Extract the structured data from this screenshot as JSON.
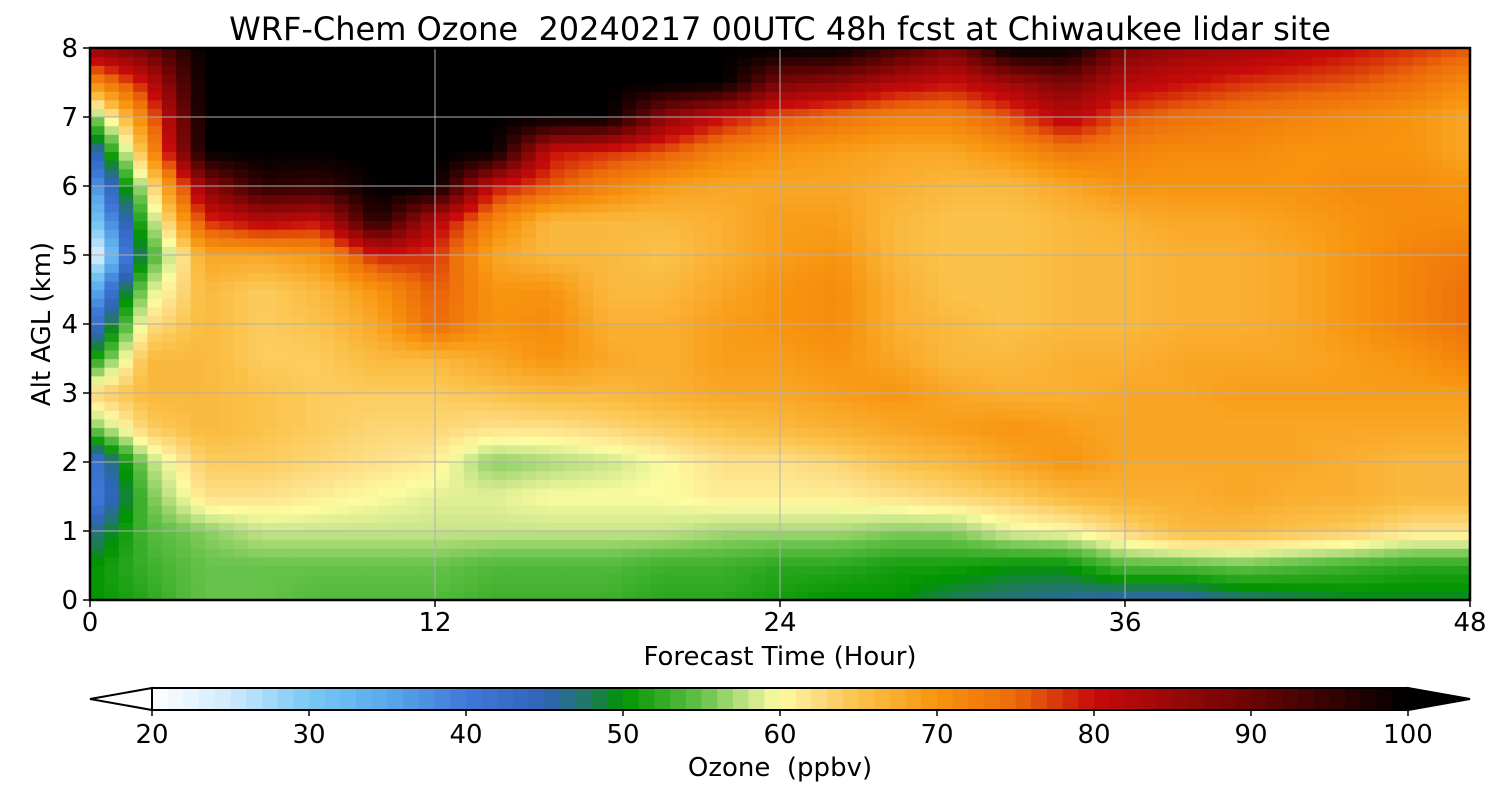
{
  "chart_data": {
    "type": "heatmap",
    "title": "WRF-Chem Ozone  20240217 00UTC 48h fcst at Chiwaukee lidar site",
    "xlabel": "Forecast Time (Hour)",
    "ylabel": "Alt AGL (km)",
    "xlim": [
      0,
      48
    ],
    "ylim": [
      0,
      8
    ],
    "xticks": [
      "0",
      "12",
      "24",
      "36",
      "48"
    ],
    "yticks": [
      "0",
      "1",
      "2",
      "3",
      "4",
      "5",
      "6",
      "7",
      "8"
    ],
    "grid": true,
    "x": [
      0,
      2,
      4,
      6,
      8,
      10,
      12,
      14,
      16,
      18,
      20,
      22,
      24,
      26,
      28,
      30,
      32,
      34,
      36,
      38,
      40,
      42,
      44,
      46,
      48
    ],
    "y": [
      0,
      0.5,
      1,
      1.5,
      2,
      2.5,
      3,
      3.5,
      4,
      4.5,
      5,
      5.5,
      6,
      6.5,
      7,
      7.5,
      8
    ],
    "z": [
      [
        50,
        52,
        55,
        55,
        54,
        54,
        54,
        53,
        53,
        53,
        52,
        52,
        51,
        50,
        50,
        48,
        47,
        46,
        45,
        45,
        47,
        48,
        49,
        49,
        49
      ],
      [
        50,
        53,
        55,
        55,
        55,
        55,
        55,
        54,
        54,
        54,
        53,
        53,
        52,
        52,
        51,
        51,
        50,
        50,
        54,
        54,
        55,
        54,
        53,
        52,
        52
      ],
      [
        46,
        54,
        56,
        58,
        58,
        58,
        58,
        58,
        58,
        58,
        58,
        57,
        57,
        57,
        56,
        56,
        59,
        60,
        63,
        66,
        66,
        65,
        64,
        62,
        62
      ],
      [
        38,
        55,
        62,
        62,
        61,
        60,
        59,
        59,
        60,
        60,
        60,
        61,
        61,
        61,
        62,
        63,
        64,
        66,
        67,
        67,
        68,
        67,
        67,
        66,
        66
      ],
      [
        40,
        57,
        64,
        64,
        63,
        62,
        61,
        56,
        57,
        58,
        60,
        62,
        62,
        63,
        65,
        66,
        68,
        70,
        68,
        68,
        68,
        68,
        67,
        66,
        66
      ],
      [
        55,
        64,
        66,
        65,
        64,
        63,
        63,
        62,
        62,
        63,
        64,
        65,
        66,
        67,
        68,
        69,
        70,
        69,
        68,
        68,
        68,
        68,
        68,
        68,
        68
      ],
      [
        63,
        66,
        66,
        65,
        64,
        64,
        64,
        65,
        66,
        66,
        67,
        68,
        68,
        69,
        70,
        68,
        67,
        67,
        68,
        68,
        69,
        69,
        69,
        69,
        69
      ],
      [
        50,
        66,
        66,
        64,
        64,
        66,
        66,
        68,
        70,
        68,
        67,
        69,
        69,
        70,
        68,
        66,
        66,
        67,
        67,
        68,
        68,
        68,
        69,
        70,
        72
      ],
      [
        40,
        62,
        66,
        64,
        65,
        68,
        75,
        70,
        71,
        67,
        67,
        69,
        70,
        71,
        67,
        66,
        65,
        66,
        66,
        67,
        67,
        68,
        70,
        72,
        74
      ],
      [
        32,
        58,
        66,
        64,
        66,
        70,
        76,
        70,
        70,
        66,
        66,
        68,
        70,
        71,
        67,
        65,
        65,
        66,
        66,
        67,
        67,
        68,
        70,
        72,
        74
      ],
      [
        20,
        52,
        68,
        68,
        70,
        79,
        78,
        68,
        66,
        66,
        65,
        67,
        69,
        70,
        66,
        65,
        65,
        66,
        66,
        67,
        67,
        68,
        70,
        72,
        73
      ],
      [
        28,
        55,
        78,
        82,
        80,
        97,
        82,
        72,
        66,
        66,
        66,
        67,
        69,
        69,
        66,
        65,
        65,
        66,
        67,
        68,
        68,
        69,
        70,
        71,
        71
      ],
      [
        34,
        60,
        86,
        96,
        95,
        100,
        100,
        80,
        76,
        72,
        69,
        68,
        68,
        68,
        67,
        66,
        66,
        68,
        70,
        70,
        70,
        70,
        71,
        71,
        70
      ],
      [
        42,
        68,
        100,
        100,
        100,
        100,
        100,
        100,
        80,
        78,
        76,
        72,
        70,
        69,
        68,
        68,
        70,
        73,
        72,
        71,
        71,
        70,
        70,
        70,
        68
      ],
      [
        54,
        73,
        100,
        100,
        100,
        100,
        100,
        100,
        100,
        100,
        86,
        80,
        76,
        74,
        72,
        72,
        76,
        82,
        76,
        74,
        73,
        72,
        71,
        70,
        68
      ],
      [
        70,
        80,
        100,
        100,
        100,
        100,
        100,
        100,
        100,
        100,
        100,
        100,
        88,
        86,
        82,
        80,
        84,
        88,
        82,
        80,
        78,
        77,
        76,
        74,
        71
      ],
      [
        85,
        90,
        100,
        100,
        100,
        100,
        100,
        100,
        100,
        100,
        100,
        100,
        100,
        100,
        94,
        88,
        100,
        100,
        88,
        85,
        84,
        82,
        80,
        78,
        76
      ]
    ],
    "colorbar": {
      "label": "Ozone  (ppbv)",
      "min": 20,
      "max": 100,
      "ticks": [
        "20",
        "30",
        "40",
        "50",
        "60",
        "70",
        "80",
        "90",
        "100"
      ],
      "extend": "both",
      "colors": [
        [
          20,
          "#ffffff"
        ],
        [
          25,
          "#cfeafc"
        ],
        [
          30,
          "#79c8f4"
        ],
        [
          35,
          "#5aa9ec"
        ],
        [
          40,
          "#3f78d8"
        ],
        [
          45,
          "#2f64b8"
        ],
        [
          48,
          "#1f7a5c"
        ],
        [
          50,
          "#009400"
        ],
        [
          55,
          "#66c24a"
        ],
        [
          58,
          "#c8e58a"
        ],
        [
          60,
          "#fdfca0"
        ],
        [
          62,
          "#fde08a"
        ],
        [
          65,
          "#fbc24a"
        ],
        [
          70,
          "#f8940e"
        ],
        [
          75,
          "#ec6a0a"
        ],
        [
          80,
          "#c80a0a"
        ],
        [
          85,
          "#9a0808"
        ],
        [
          90,
          "#6b0404"
        ],
        [
          95,
          "#350202"
        ],
        [
          100,
          "#000000"
        ]
      ]
    }
  }
}
